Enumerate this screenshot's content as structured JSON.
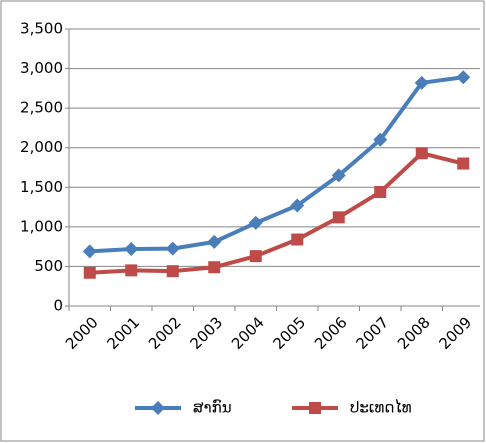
{
  "chart_data": {
    "type": "line",
    "categories": [
      "2000",
      "2001",
      "2002",
      "2003",
      "2004",
      "2005",
      "2006",
      "2007",
      "2008",
      "2009"
    ],
    "series": [
      {
        "name": "ສາກົນ",
        "color": "#4a7ebb",
        "values": [
          690,
          720,
          725,
          810,
          1050,
          1270,
          1650,
          2100,
          2820,
          2890
        ]
      },
      {
        "name": "ປະເທດໄທ",
        "color": "#be4b48",
        "values": [
          420,
          450,
          440,
          490,
          630,
          840,
          1120,
          1440,
          1930,
          1800
        ]
      }
    ],
    "ylim": [
      0,
      3500
    ],
    "yticks": [
      0,
      500,
      {
        "value": 1000,
        "label": "1,000"
      },
      {
        "value": 1500,
        "label": "1,500"
      },
      {
        "value": 2000,
        "label": "2,000"
      },
      {
        "value": 2500,
        "label": "2,500"
      },
      {
        "value": 3000,
        "label": "3,000"
      },
      {
        "value": 3500,
        "label": "3,500"
      }
    ],
    "grid": true,
    "legend": "bottom"
  }
}
